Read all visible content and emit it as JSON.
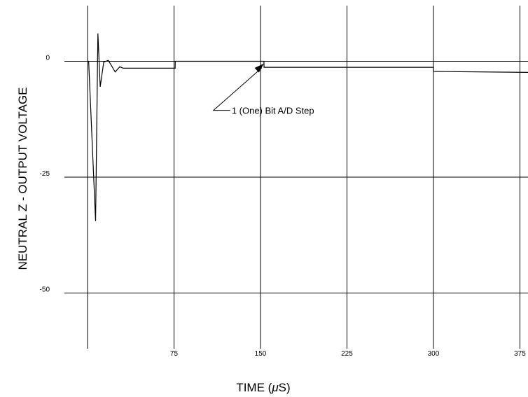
{
  "chart_data": {
    "type": "line",
    "title": "",
    "xlabel": "TIME (μS)",
    "xlabel_parts": {
      "prefix": "TIME (",
      "mu": "μ",
      "suffix": "S)"
    },
    "ylabel": "NEUTRAL Z - OUTPUT VOLTAGE",
    "xlim": [
      0,
      382
    ],
    "ylim": [
      -62,
      12
    ],
    "x_ticks": [
      0,
      75,
      150,
      225,
      300,
      375
    ],
    "x_tick_labels": [
      "",
      "75",
      "150",
      "225",
      "300",
      "375"
    ],
    "y_ticks": [
      0,
      -25,
      -50
    ],
    "y_tick_labels": [
      "0",
      "-25",
      "-50"
    ],
    "grid": true,
    "legend": "none",
    "series": [
      {
        "x": [
          0,
          1,
          7,
          9,
          11,
          14,
          18,
          24,
          28,
          31,
          76,
          76.1,
          150,
          153,
          153.1,
          300,
          300.1,
          382
        ],
        "y": [
          0,
          0,
          -34.5,
          6,
          -5.5,
          -0.2,
          0.2,
          -2.3,
          -1.2,
          -1.5,
          -1.5,
          0,
          0,
          0,
          -1.3,
          -1.3,
          -2.2,
          -2.4
        ]
      }
    ],
    "annotations": [
      {
        "text": "1 (One) Bit A/D Step",
        "x": 125,
        "y": -10,
        "arrow_to": [
          153,
          -0.5
        ]
      }
    ]
  }
}
